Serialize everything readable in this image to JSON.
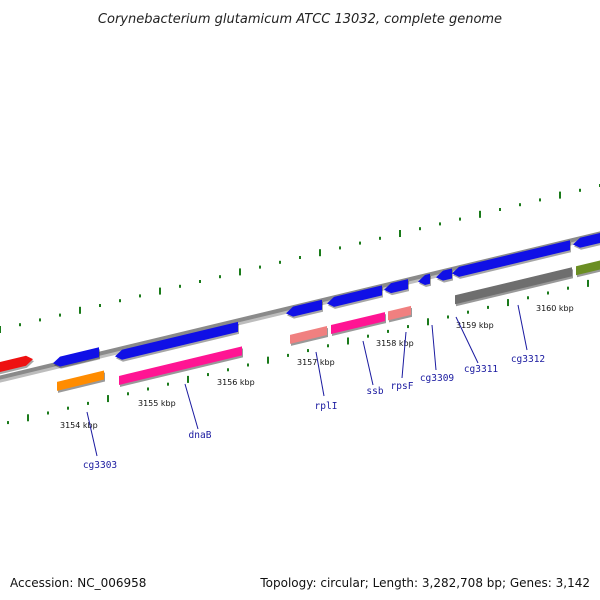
{
  "title": "Corynebacterium glutamicum ATCC 13032, complete genome",
  "footer": {
    "accession": "Accession: NC_006958",
    "summary": "Topology: circular; Length: 3,282,708 bp; Genes: 3,142"
  },
  "ticks": [
    {
      "label": "3154 kbp"
    },
    {
      "label": "3155 kbp"
    },
    {
      "label": "3156 kbp"
    },
    {
      "label": "3157 kbp"
    },
    {
      "label": "3158 kbp"
    },
    {
      "label": "3159 kbp"
    },
    {
      "label": "3160 kbp"
    }
  ],
  "gene_labels": [
    {
      "label": "cg3303"
    },
    {
      "label": "dnaB"
    },
    {
      "label": "rplI"
    },
    {
      "label": "ssb"
    },
    {
      "label": "rpsF"
    },
    {
      "label": "cg3309"
    },
    {
      "label": "cg3311"
    },
    {
      "label": "cg3312"
    }
  ],
  "colors": {
    "backbone": "#8a8a8a",
    "gene_blue": "#1010e6",
    "gene_red": "#ee1111",
    "cds_orange": "#ff8c00",
    "cds_pink": "#ff1493",
    "cds_lightpink": "#f08080",
    "cds_gray": "#6e6e6e",
    "cds_olive": "#6b8e23",
    "tick_green": "#1a7a1a",
    "label_blue": "#1a1aa0"
  }
}
